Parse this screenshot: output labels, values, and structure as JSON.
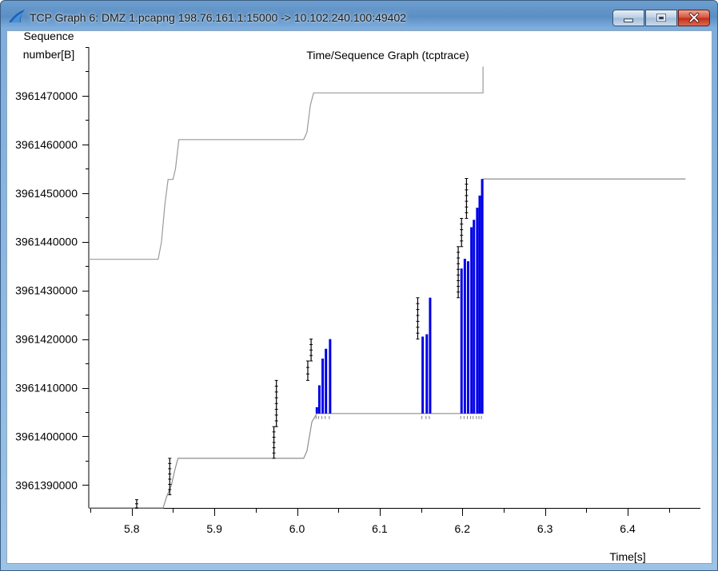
{
  "window": {
    "title": "TCP Graph 6: DMZ 1.pcapng 198.76.161.1:15000 -> 10.102.240.100:49402",
    "icon": "wireshark-fin-icon",
    "controls": {
      "minimize": "minimize-icon",
      "maximize": "maximize-icon",
      "close": "close-icon"
    }
  },
  "colors": {
    "data": "#0000e6",
    "ack_line": "#8e8e8e",
    "window_line": "#9a9a9a",
    "sack": "#000000"
  },
  "chart_data": {
    "type": "line",
    "title": "Time/Sequence Graph (tcptrace)",
    "xlabel": "Time[s]",
    "ylabel_lines": [
      "Sequence",
      "number[B]"
    ],
    "xlim": [
      5.748,
      6.488
    ],
    "ylim": [
      3961385300,
      3961480000
    ],
    "x_ticks": [
      5.8,
      5.9,
      6.0,
      6.1,
      6.2,
      6.3,
      6.4
    ],
    "x_tick_labels": [
      "5.8",
      "5.9",
      "6.0",
      "6.1",
      "6.2",
      "6.3",
      "6.4"
    ],
    "y_ticks": [
      3961390000,
      3961400000,
      3961410000,
      3961420000,
      3961430000,
      3961440000,
      3961450000,
      3961460000,
      3961470000
    ],
    "y_tick_labels": [
      "3961390000",
      "3961400000",
      "3961410000",
      "3961420000",
      "3961430000",
      "3961440000",
      "3961450000",
      "3961460000",
      "3961470000"
    ],
    "series": [
      {
        "kind": "window",
        "points": [
          [
            5.748,
            3961436400
          ],
          [
            5.832,
            3961436400
          ],
          [
            5.836,
            3961440000
          ],
          [
            5.84,
            3961447500
          ],
          [
            5.844,
            3961452800
          ],
          [
            5.85,
            3961452800
          ],
          [
            5.853,
            3961455000
          ],
          [
            5.857,
            3961461000
          ],
          [
            6.008,
            3961461000
          ],
          [
            6.012,
            3961462500
          ],
          [
            6.016,
            3961468000
          ],
          [
            6.02,
            3961470600
          ],
          [
            6.225,
            3961470600
          ],
          [
            6.225,
            3961476000
          ]
        ]
      },
      {
        "kind": "ack",
        "points": [
          [
            5.748,
            3961385300
          ],
          [
            5.838,
            3961385300
          ],
          [
            5.842,
            3961387500
          ],
          [
            5.848,
            3961390000
          ],
          [
            5.852,
            3961393000
          ],
          [
            5.856,
            3961395500
          ],
          [
            6.008,
            3961395500
          ],
          [
            6.012,
            3961397000
          ],
          [
            6.018,
            3961403000
          ],
          [
            6.024,
            3961404700
          ],
          [
            6.225,
            3961404700
          ],
          [
            6.225,
            3961452900
          ],
          [
            6.47,
            3961452900
          ]
        ]
      },
      {
        "kind": "data",
        "segments": [
          {
            "t": 6.024,
            "seq": [
              3961404700,
              3961406000
            ]
          },
          {
            "t": 6.027,
            "seq": [
              3961404700,
              3961410500
            ]
          },
          {
            "t": 6.031,
            "seq": [
              3961404700,
              3961416000
            ]
          },
          {
            "t": 6.035,
            "seq": [
              3961404700,
              3961418000
            ]
          },
          {
            "t": 6.04,
            "seq": [
              3961404700,
              3961420000
            ]
          },
          {
            "t": 6.152,
            "seq": [
              3961404700,
              3961420500
            ]
          },
          {
            "t": 6.157,
            "seq": [
              3961404700,
              3961421000
            ]
          },
          {
            "t": 6.161,
            "seq": [
              3961404700,
              3961428500
            ]
          },
          {
            "t": 6.199,
            "seq": [
              3961404700,
              3961434500
            ]
          },
          {
            "t": 6.203,
            "seq": [
              3961404700,
              3961436500
            ]
          },
          {
            "t": 6.207,
            "seq": [
              3961404700,
              3961436000
            ]
          },
          {
            "t": 6.211,
            "seq": [
              3961404700,
              3961443000
            ]
          },
          {
            "t": 6.214,
            "seq": [
              3961404700,
              3961444500
            ]
          },
          {
            "t": 6.218,
            "seq": [
              3961404700,
              3961447000
            ]
          },
          {
            "t": 6.221,
            "seq": [
              3961404700,
              3961449500
            ]
          },
          {
            "t": 6.224,
            "seq": [
              3961404700,
              3961452900
            ]
          }
        ]
      },
      {
        "kind": "sack",
        "segments": [
          {
            "t": 5.806,
            "seq": [
              3961385300,
              3961387000
            ]
          },
          {
            "t": 5.846,
            "seq": [
              3961388000,
              3961395500
            ]
          },
          {
            "t": 5.972,
            "seq": [
              3961395500,
              3961402000
            ]
          },
          {
            "t": 5.975,
            "seq": [
              3961402000,
              3961411500
            ]
          },
          {
            "t": 6.013,
            "seq": [
              3961411500,
              3961415500
            ]
          },
          {
            "t": 6.017,
            "seq": [
              3961415500,
              3961420000
            ]
          },
          {
            "t": 6.146,
            "seq": [
              3961420000,
              3961428500
            ]
          },
          {
            "t": 6.195,
            "seq": [
              3961428500,
              3961439000
            ]
          },
          {
            "t": 6.199,
            "seq": [
              3961439000,
              3961444800
            ]
          },
          {
            "t": 6.205,
            "seq": [
              3961444800,
              3961453000
            ]
          }
        ]
      }
    ]
  }
}
